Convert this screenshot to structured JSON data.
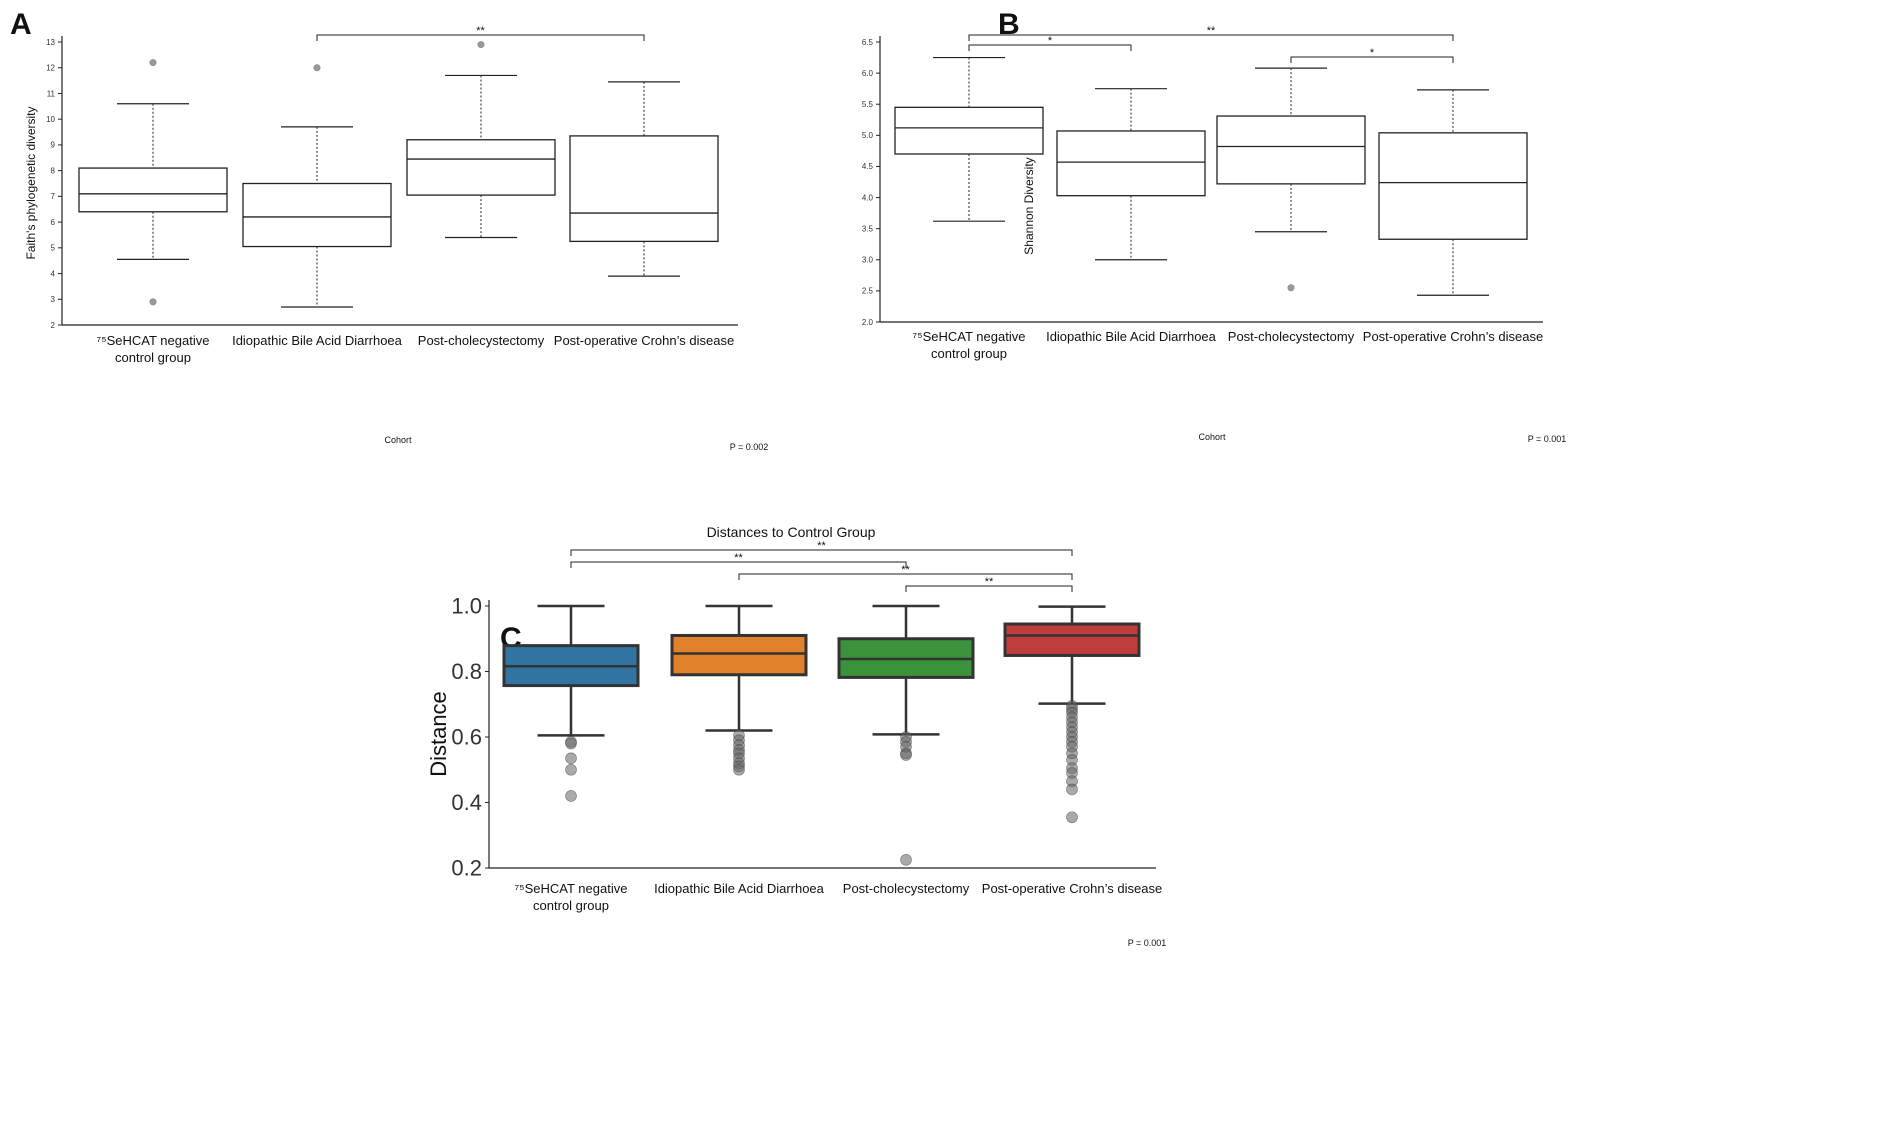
{
  "colors": {
    "axis": "#222222",
    "box_stroke": "#333333",
    "outlier": "#999999",
    "c_blue": "#3274a1",
    "c_orange": "#e1812c",
    "c_green": "#3a923a",
    "c_red": "#c03d3e"
  },
  "chart_data": [
    {
      "panel_label": "A",
      "type": "box",
      "title": "",
      "xlabel": "Cohort",
      "ylabel": "Faith's phylogenetic diversity",
      "ylim": [
        2,
        13
      ],
      "yticks": [
        "2",
        "3",
        "4",
        "5",
        "6",
        "7",
        "8",
        "9",
        "10",
        "11",
        "12",
        "13"
      ],
      "categories": [
        "⁷⁵SeHCAT negative control group",
        "Idiopathic Bile Acid Diarrhoea",
        "Post-cholecystectomy",
        "Post-operative Crohn's disease"
      ],
      "category_lines": [
        [
          "⁷⁵SeHCAT negative",
          "control group"
        ],
        [
          "Idiopathic Bile Acid Diarrhoea"
        ],
        [
          "Post-cholecystectomy"
        ],
        [
          "Post-operative Crohn’s disease"
        ]
      ],
      "boxes": [
        {
          "whislo": 4.55,
          "q1": 6.4,
          "med": 7.1,
          "q3": 8.1,
          "whishi": 10.6,
          "fliers": [
            12.2,
            2.9
          ]
        },
        {
          "whislo": 2.7,
          "q1": 5.05,
          "med": 6.2,
          "q3": 7.5,
          "whishi": 9.7,
          "fliers": [
            12.0
          ]
        },
        {
          "whislo": 5.4,
          "q1": 7.05,
          "med": 8.45,
          "q3": 9.2,
          "whishi": 11.7,
          "fliers": [
            12.9
          ]
        },
        {
          "whislo": 3.9,
          "q1": 5.25,
          "med": 6.35,
          "q3": 9.35,
          "whishi": 11.45,
          "fliers": []
        }
      ],
      "significance": [
        {
          "from": 1,
          "to": 3,
          "label": "**"
        }
      ],
      "pvalue": "P = 0.002"
    },
    {
      "panel_label": "B",
      "type": "box",
      "title": "",
      "xlabel": "Cohort",
      "ylabel": "Shannon Diversity",
      "ylim": [
        2.0,
        6.5
      ],
      "yticks": [
        "2.0",
        "2.5",
        "3.0",
        "3.5",
        "4.0",
        "4.5",
        "5.0",
        "5.5",
        "6.0",
        "6.5"
      ],
      "categories": [
        "⁷⁵SeHCAT negative control group",
        "Idiopathic Bile Acid Diarrhoea",
        "Post-cholecystectomy",
        "Post-operative Crohn's disease"
      ],
      "category_lines": [
        [
          "⁷⁵SeHCAT negative",
          "control group"
        ],
        [
          "Idiopathic Bile Acid Diarrhoea"
        ],
        [
          "Post-cholecystectomy"
        ],
        [
          "Post-operative Crohn’s disease"
        ]
      ],
      "boxes": [
        {
          "whislo": 3.62,
          "q1": 4.7,
          "med": 5.12,
          "q3": 5.45,
          "whishi": 6.25,
          "fliers": []
        },
        {
          "whislo": 3.0,
          "q1": 4.03,
          "med": 4.57,
          "q3": 5.07,
          "whishi": 5.75,
          "fliers": []
        },
        {
          "whislo": 3.45,
          "q1": 4.22,
          "med": 4.82,
          "q3": 5.31,
          "whishi": 6.08,
          "fliers": [
            2.55
          ]
        },
        {
          "whislo": 2.43,
          "q1": 3.33,
          "med": 4.24,
          "q3": 5.04,
          "whishi": 5.73,
          "fliers": []
        }
      ],
      "significance": [
        {
          "from": 0,
          "to": 1,
          "label": "*"
        },
        {
          "from": 0,
          "to": 3,
          "label": "**"
        },
        {
          "from": 2,
          "to": 3,
          "label": "*"
        }
      ],
      "pvalue": "P = 0.001"
    },
    {
      "panel_label": "C",
      "type": "box",
      "title": "Distances to Control Group",
      "xlabel": "",
      "ylabel": "Distance",
      "ylim": [
        0.2,
        1.0
      ],
      "yticks": [
        "0.2",
        "0.4",
        "0.6",
        "0.8",
        "1.0"
      ],
      "categories": [
        "⁷⁵SeHCAT negative control group",
        "Idiopathic Bile Acid Diarrhoea",
        "Post-cholecystectomy",
        "Post-operative Crohn's disease"
      ],
      "category_lines": [
        [
          "⁷⁵SeHCAT negative",
          "control group"
        ],
        [
          "Idiopathic Bile Acid Diarrhoea"
        ],
        [
          "Post-cholecystectomy"
        ],
        [
          "Post-operative Crohn’s disease"
        ]
      ],
      "box_colors": [
        "c_blue",
        "c_orange",
        "c_green",
        "c_red"
      ],
      "boxes": [
        {
          "whislo": 0.605,
          "q1": 0.757,
          "med": 0.816,
          "q3": 0.879,
          "whishi": 1.0,
          "fliers": [
            0.585,
            0.58,
            0.535,
            0.5,
            0.42
          ]
        },
        {
          "whislo": 0.62,
          "q1": 0.79,
          "med": 0.855,
          "q3": 0.91,
          "whishi": 1.0,
          "fliers": [
            0.605,
            0.59,
            0.575,
            0.56,
            0.55,
            0.535,
            0.52,
            0.51,
            0.5
          ]
        },
        {
          "whislo": 0.608,
          "q1": 0.782,
          "med": 0.838,
          "q3": 0.9,
          "whishi": 1.0,
          "fliers": [
            0.6,
            0.585,
            0.57,
            0.55,
            0.545,
            0.225
          ]
        },
        {
          "whislo": 0.702,
          "q1": 0.849,
          "med": 0.91,
          "q3": 0.945,
          "whishi": 0.998,
          "fliers": [
            0.695,
            0.685,
            0.675,
            0.66,
            0.645,
            0.63,
            0.615,
            0.6,
            0.585,
            0.57,
            0.55,
            0.53,
            0.505,
            0.49,
            0.465,
            0.44,
            0.355
          ]
        }
      ],
      "significance": [
        {
          "from": 0,
          "to": 3,
          "label": "**"
        },
        {
          "from": 0,
          "to": 2,
          "label": "**"
        },
        {
          "from": 1,
          "to": 3,
          "label": "**"
        },
        {
          "from": 2,
          "to": 3,
          "label": "**"
        }
      ],
      "pvalue": "P = 0.001"
    }
  ]
}
